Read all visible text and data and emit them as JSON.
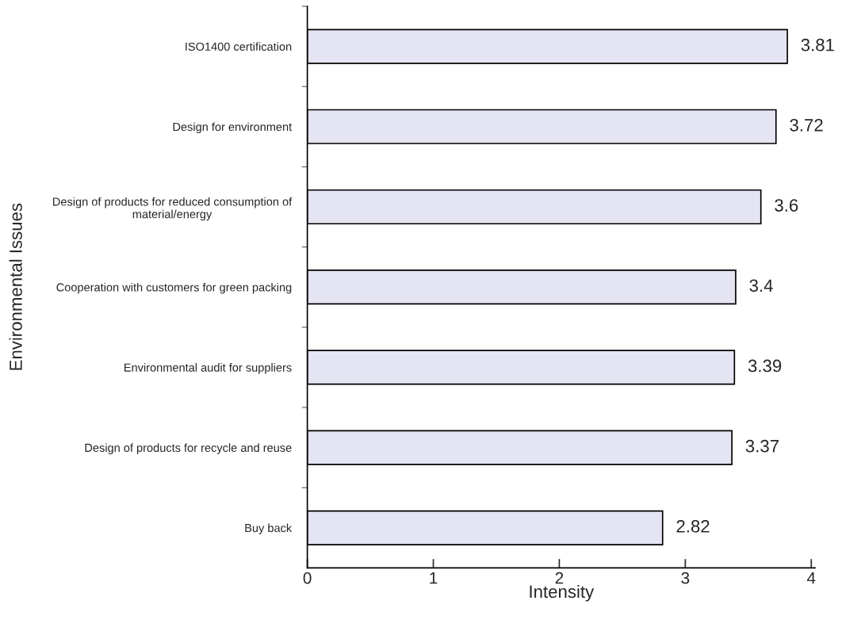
{
  "chart_data": {
    "type": "bar",
    "orientation": "horizontal",
    "categories": [
      "ISO1400 certification",
      "Design for environment",
      "Design of products for reduced consumption of\nmaterial/energy",
      "Cooperation with customers for green packing",
      "Environmental audit for suppliers",
      "Design of products for recycle and reuse",
      "Buy back"
    ],
    "values": [
      3.81,
      3.72,
      3.6,
      3.4,
      3.39,
      3.37,
      2.82
    ],
    "color": "#e4e4f2",
    "xlabel": "Intensity",
    "ylabel": "Environmental Issues",
    "xlim": [
      0,
      4.03
    ],
    "xticks": [
      0,
      1,
      2,
      3,
      4
    ],
    "data_labels": true,
    "grid": false,
    "legend": false
  }
}
